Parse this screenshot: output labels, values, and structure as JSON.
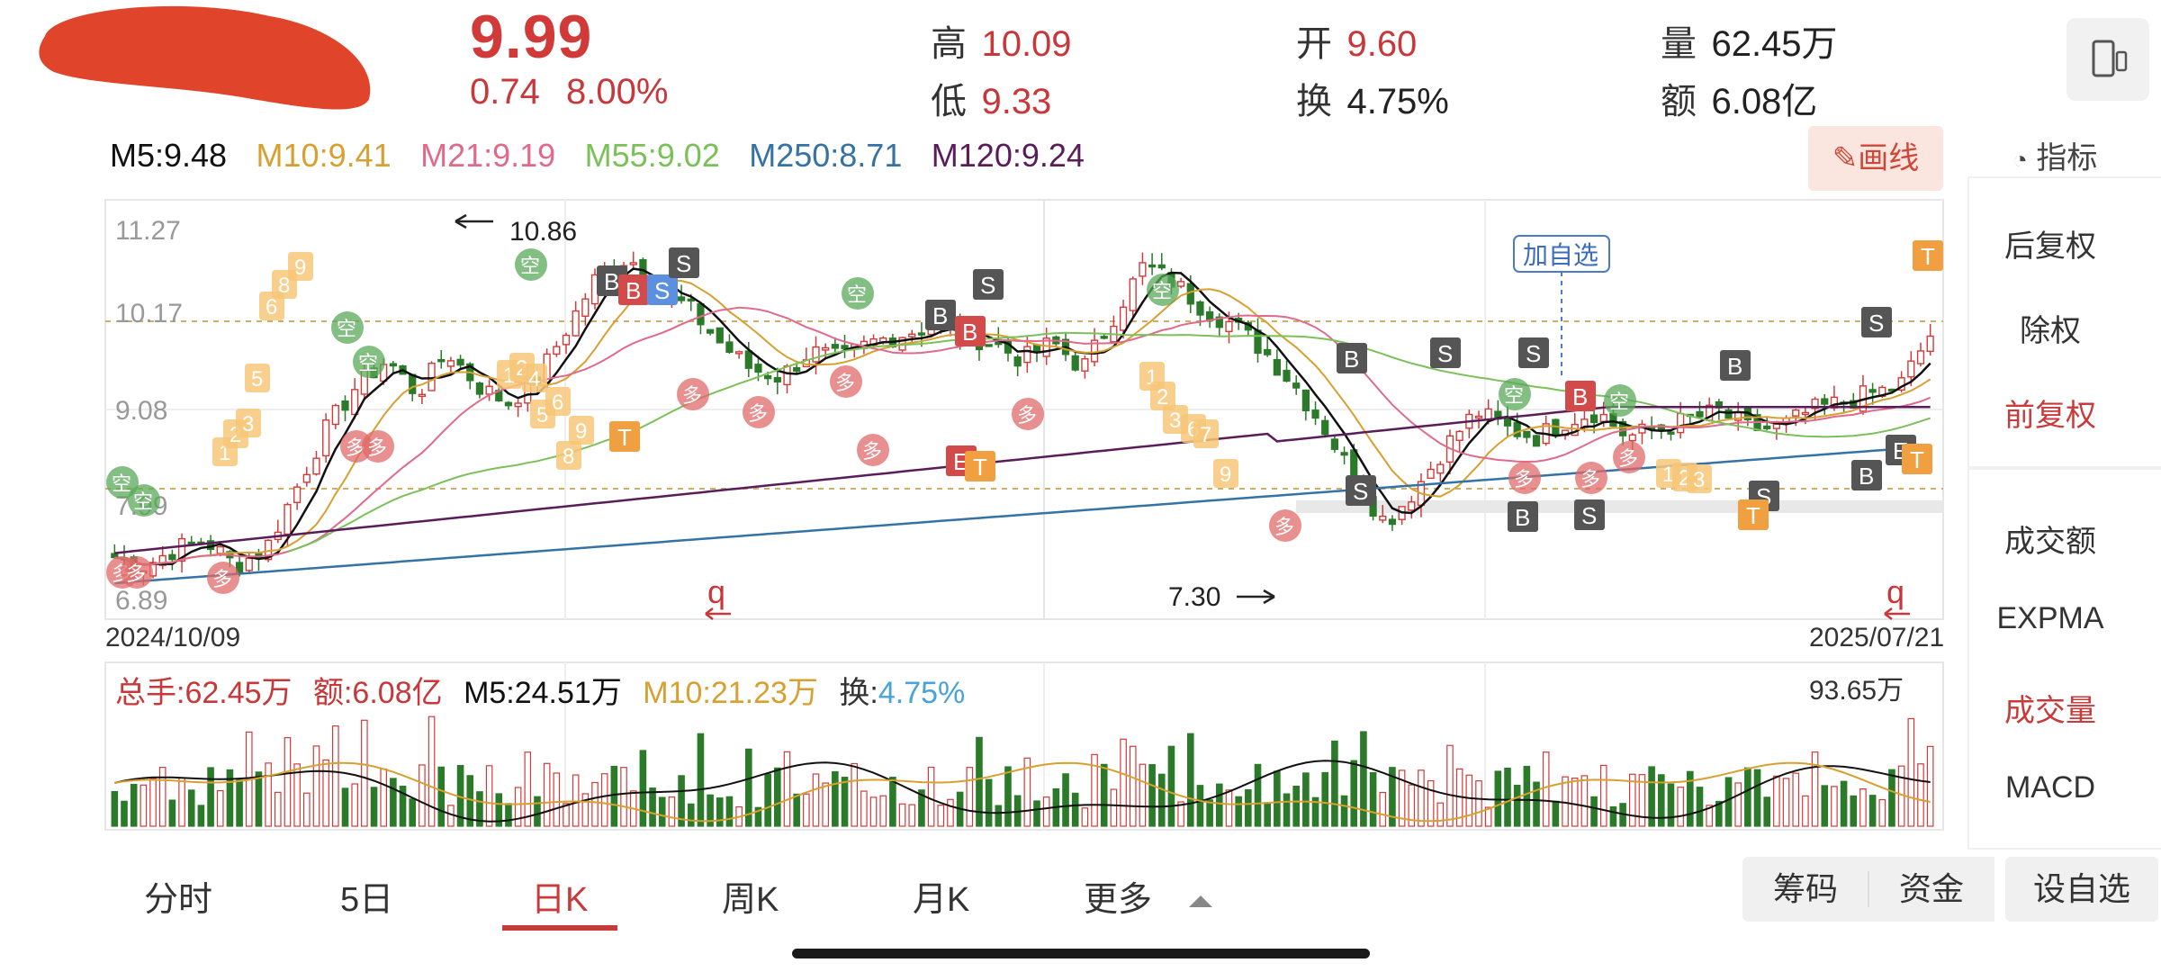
{
  "quote": {
    "price": "9.99",
    "change": "0.74",
    "change_pct": "8.00%",
    "high_label": "高",
    "high": "10.09",
    "low_label": "低",
    "low": "9.33",
    "open_label": "开",
    "open": "9.60",
    "turnover_label": "换",
    "turnover": "4.75%",
    "volume_label": "量",
    "volume": "62.45万",
    "amount_label": "额",
    "amount": "6.08亿"
  },
  "ma_legend": [
    {
      "label": "M5:9.48",
      "color": "#111111"
    },
    {
      "label": "M10:9.41",
      "color": "#d7a030"
    },
    {
      "label": "M21:9.19",
      "color": "#e06a8a"
    },
    {
      "label": "M55:9.02",
      "color": "#7cc05a"
    },
    {
      "label": "M250:8.71",
      "color": "#3572a5"
    },
    {
      "label": "M120:9.24",
      "color": "#5a1d5a"
    }
  ],
  "toolbar": {
    "draw_label": "画线",
    "indicator_label": "指标"
  },
  "chart": {
    "y_ticks": [
      "11.27",
      "10.17",
      "9.08",
      "7.99",
      "6.89"
    ],
    "start_date": "2024/10/09",
    "end_date": "2025/07/21",
    "high_annotation": "10.86",
    "low_annotation": "7.30",
    "watch_tag": "加自选",
    "q_marker": "q"
  },
  "volume_panel": {
    "total_hands": "总手:62.45万",
    "amount": "额:6.08亿",
    "m5": "M5:24.51万",
    "m10": "M10:21.23万",
    "turnover_label": "换:",
    "turnover": "4.75%",
    "max_label": "93.65万"
  },
  "sidebar": {
    "items": [
      {
        "label": "后复权",
        "active": false
      },
      {
        "label": "除权",
        "active": false
      },
      {
        "label": "前复权",
        "active": true
      },
      {
        "label": "成交额",
        "active": false
      },
      {
        "label": "EXPMA",
        "active": false
      },
      {
        "label": "成交量",
        "active": true
      },
      {
        "label": "MACD",
        "active": false
      }
    ]
  },
  "tabs": [
    {
      "label": "分时",
      "active": false
    },
    {
      "label": "5日",
      "active": false
    },
    {
      "label": "日K",
      "active": true
    },
    {
      "label": "周K",
      "active": false
    },
    {
      "label": "月K",
      "active": false
    },
    {
      "label": "更多",
      "active": false
    }
  ],
  "bottom_buttons": {
    "chips": "筹码",
    "funds": "资金",
    "add_watch": "设自选"
  },
  "chart_data": {
    "type": "candlestick",
    "x_range": [
      "2024/10/09",
      "2025/07/21"
    ],
    "ylim": [
      6.89,
      11.27
    ],
    "annotations": [
      {
        "text": "10.86",
        "type": "high"
      },
      {
        "text": "7.30",
        "type": "low"
      }
    ],
    "close_path": [
      7.4,
      7.3,
      7.5,
      7.6,
      7.3,
      7.5,
      8.2,
      8.9,
      9.4,
      9.7,
      9.3,
      9.8,
      9.4,
      9.2,
      9.5,
      10.1,
      10.7,
      10.9,
      10.5,
      10.3,
      9.9,
      9.6,
      9.5,
      9.8,
      9.7,
      9.9,
      10.0,
      10.1,
      10.0,
      9.9,
      9.7,
      9.9,
      9.6,
      10.2,
      10.8,
      10.6,
      10.3,
      10.1,
      9.8,
      9.4,
      8.9,
      8.3,
      7.8,
      8.2,
      8.7,
      9.1,
      8.9,
      8.8,
      9.0,
      9.1,
      8.8,
      8.9,
      9.0,
      9.1,
      8.9,
      8.9,
      9.1,
      9.2,
      9.3,
      9.4,
      9.99
    ]
  }
}
